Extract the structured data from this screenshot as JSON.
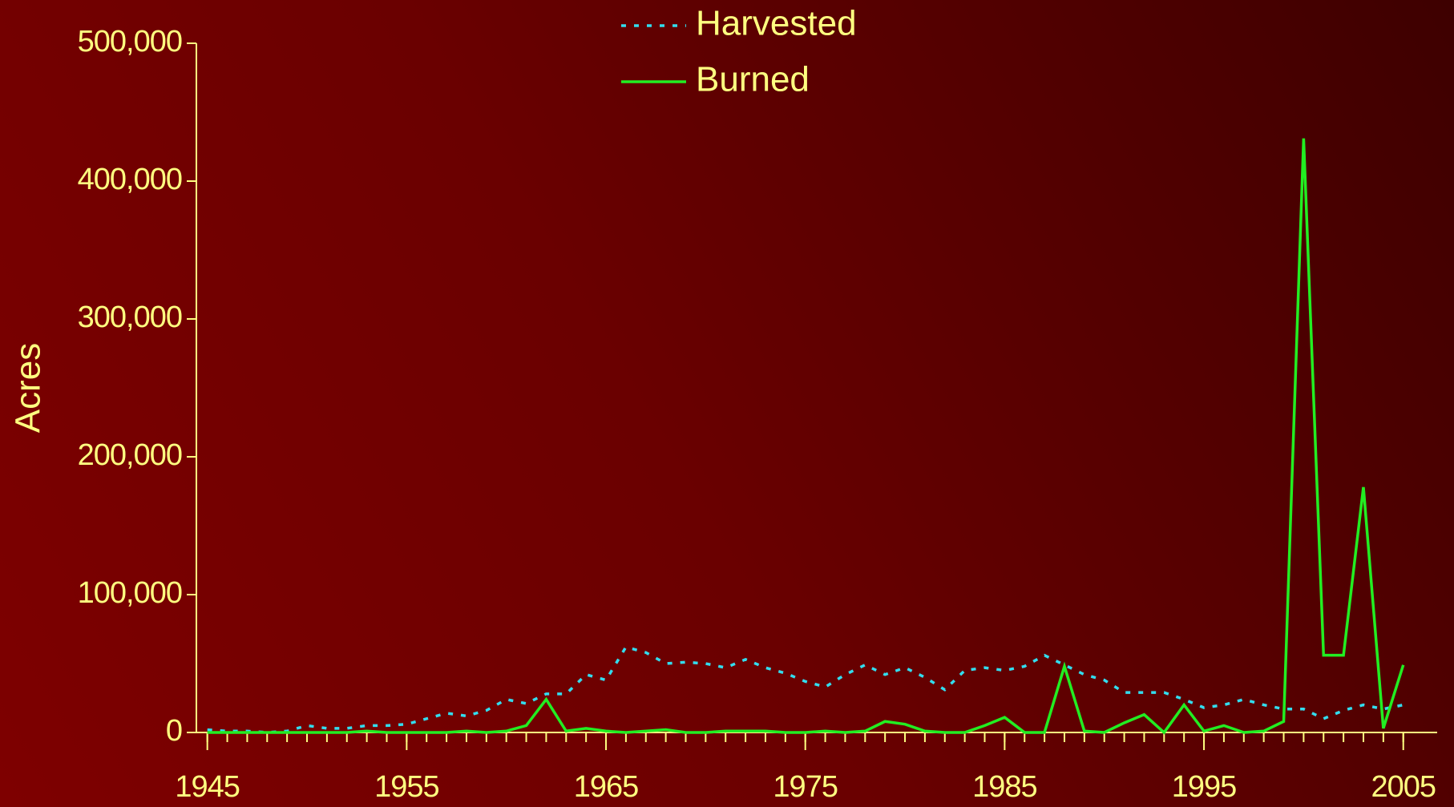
{
  "chart_data": {
    "type": "line",
    "y_label": "Acres",
    "x": [
      1945,
      1946,
      1947,
      1948,
      1949,
      1950,
      1951,
      1952,
      1953,
      1954,
      1955,
      1956,
      1957,
      1958,
      1959,
      1960,
      1961,
      1962,
      1963,
      1964,
      1965,
      1966,
      1967,
      1968,
      1969,
      1970,
      1971,
      1972,
      1973,
      1974,
      1975,
      1976,
      1977,
      1978,
      1979,
      1980,
      1981,
      1982,
      1983,
      1984,
      1985,
      1986,
      1987,
      1988,
      1989,
      1990,
      1991,
      1992,
      1993,
      1994,
      1995,
      1996,
      1997,
      1998,
      1999,
      2000,
      2001,
      2002,
      2003,
      2004,
      2005
    ],
    "series": [
      {
        "name": "Harvested",
        "color": "#33ddee",
        "dashed": true,
        "values": [
          2000,
          1000,
          1000,
          0,
          1000,
          5000,
          3000,
          3000,
          5000,
          5000,
          6000,
          10000,
          14000,
          12000,
          16000,
          24000,
          21000,
          28000,
          28000,
          42000,
          38000,
          62000,
          58000,
          50000,
          51000,
          50000,
          47000,
          53000,
          47000,
          43000,
          37000,
          33000,
          42000,
          49000,
          42000,
          47000,
          40000,
          31000,
          45000,
          47000,
          45000,
          48000,
          56000,
          49000,
          42000,
          38000,
          29000,
          29000,
          29000,
          24000,
          18000,
          20000,
          24000,
          20000,
          17000,
          17000,
          10000,
          16000,
          20000,
          17000,
          20000
        ]
      },
      {
        "name": "Burned",
        "color": "#22ee22",
        "dashed": false,
        "values": [
          0,
          0,
          0,
          0,
          0,
          0,
          0,
          0,
          1000,
          0,
          0,
          0,
          0,
          1000,
          0,
          1000,
          5000,
          24000,
          1000,
          3000,
          1000,
          0,
          1000,
          2000,
          0,
          0,
          1000,
          1000,
          1000,
          0,
          0,
          1000,
          0,
          1000,
          8000,
          6000,
          1000,
          0,
          0,
          5000,
          11000,
          0,
          0,
          48000,
          1000,
          0,
          7000,
          13000,
          0,
          20000,
          1000,
          5000,
          0,
          1000,
          8000,
          431000,
          56000,
          56000,
          178000,
          3000,
          49000
        ]
      }
    ],
    "xlim": [
      1944.45,
      2006.7
    ],
    "xticks": [
      1945,
      1955,
      1965,
      1975,
      1985,
      1995,
      2005
    ],
    "ylim": [
      0,
      500000
    ],
    "yticks": [
      0,
      {
        "value": 100000,
        "label": "100,000"
      },
      {
        "value": 200000,
        "label": "200,000"
      },
      {
        "value": 300000,
        "label": "300,000"
      },
      {
        "value": 400000,
        "label": "400,000"
      },
      {
        "value": 500000,
        "label": "500,000"
      }
    ],
    "legend": "top"
  }
}
